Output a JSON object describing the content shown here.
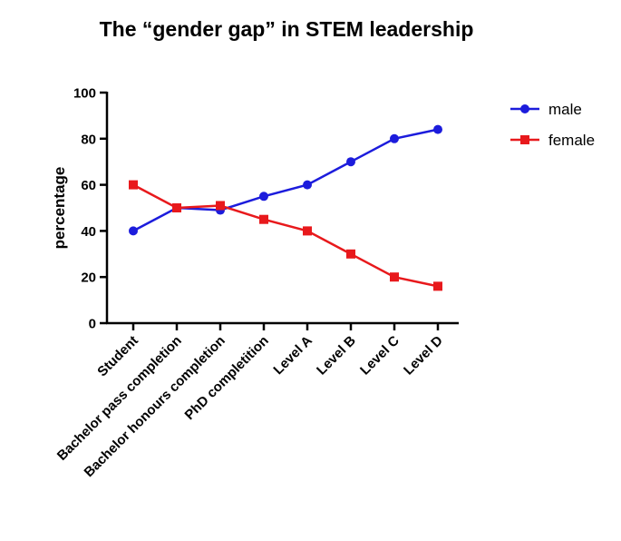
{
  "chart_data": {
    "type": "line",
    "title": "The “gender gap” in STEM leadership",
    "xlabel": "",
    "ylabel": "percentage",
    "ylim": [
      0,
      100
    ],
    "yticks": [
      0,
      20,
      40,
      60,
      80,
      100
    ],
    "grid": false,
    "legend_position": "top-right",
    "categories": [
      "Student",
      "Bachelor pass completion",
      "Bachelor honours completion",
      "PhD completition",
      "Level A",
      "Level B",
      "Level C",
      "Level D"
    ],
    "series": [
      {
        "name": "male",
        "color": "#1c1cdc",
        "marker": "circle",
        "values": [
          40,
          50,
          49,
          55,
          60,
          70,
          80,
          84
        ]
      },
      {
        "name": "female",
        "color": "#e8191c",
        "marker": "square",
        "values": [
          60,
          50,
          51,
          45,
          40,
          30,
          20,
          16
        ]
      }
    ]
  }
}
